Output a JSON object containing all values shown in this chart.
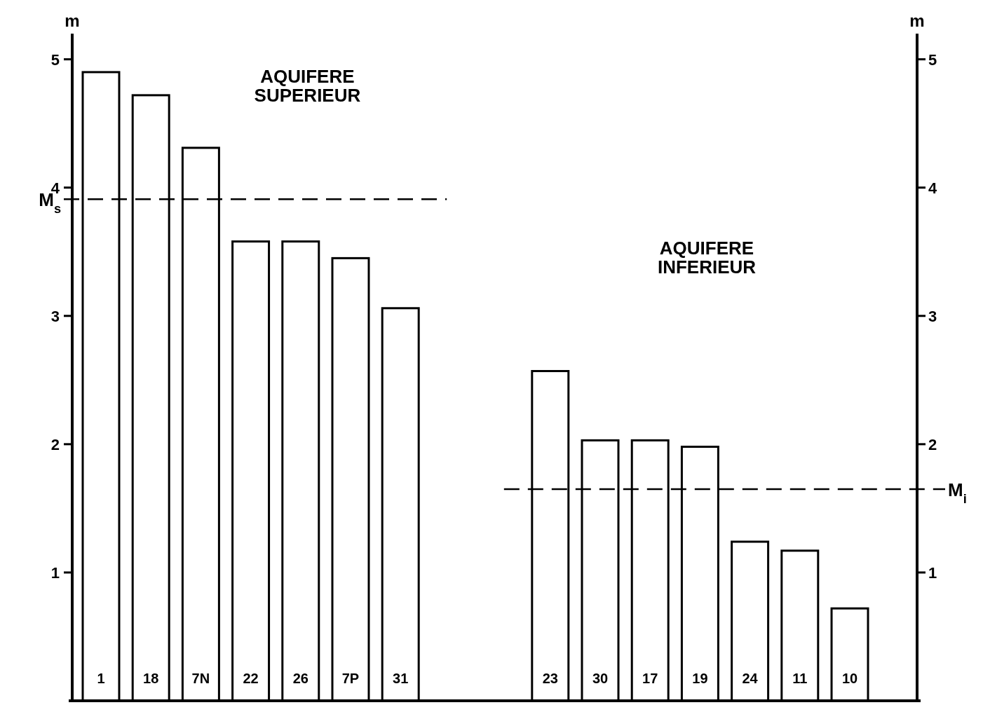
{
  "chart_data": {
    "type": "bar",
    "ylabel": "m",
    "y2label": "m",
    "categories": [
      "1",
      "18",
      "7N",
      "22",
      "26",
      "7P",
      "31",
      null,
      null,
      "23",
      "30",
      "17",
      "19",
      "24",
      "11",
      "10"
    ],
    "values": [
      4.9,
      4.72,
      4.31,
      3.58,
      3.58,
      3.45,
      3.06,
      null,
      null,
      2.57,
      2.03,
      2.03,
      1.98,
      1.24,
      1.17,
      0.72
    ],
    "color": "#ffffff",
    "ylim": [
      0,
      5.2
    ],
    "yticks": [
      1,
      2,
      3,
      4,
      5
    ],
    "y2lim": [
      0,
      5.2
    ],
    "y2ticks": [
      1,
      2,
      3,
      4,
      5
    ],
    "ref_lines": [
      {
        "axis": "y",
        "value": 3.91,
        "label": "M$_{s}$",
        "line_style": "dashed"
      },
      {
        "axis": "y2",
        "value": 1.65,
        "label": "M$_{i}$",
        "line_style": "dashed"
      }
    ],
    "annotations": [
      "AQUIFERE\nSUPERIEUR",
      "AQUIFERE\nINFERIEUR"
    ]
  }
}
